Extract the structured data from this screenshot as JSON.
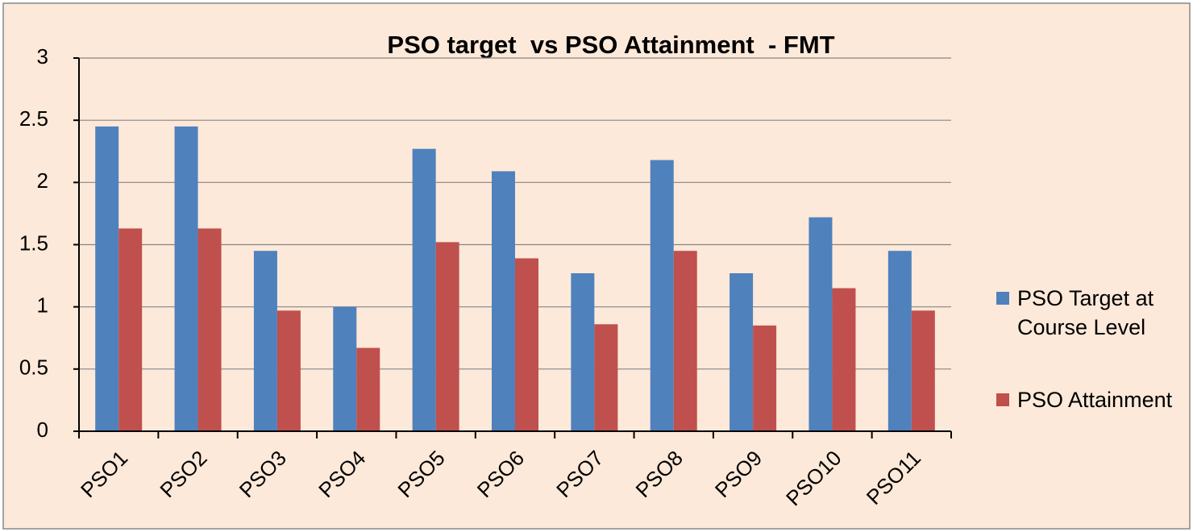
{
  "chart_data": {
    "type": "bar",
    "title": "PSO target  vs PSO Attainment  - FMT",
    "categories": [
      "PSO1",
      "PSO2",
      "PSO3",
      "PSO4",
      "PSO5",
      "PSO6",
      "PSO7",
      "PSO8",
      "PSO9",
      "PSO10",
      "PSO11"
    ],
    "series": [
      {
        "name": "PSO Target at Course Level",
        "color": "#4f81bd",
        "values": [
          2.45,
          2.45,
          1.45,
          1.0,
          2.27,
          2.09,
          1.27,
          2.18,
          1.27,
          1.72,
          1.45
        ]
      },
      {
        "name": "PSO Attainment",
        "color": "#c0504d",
        "values": [
          1.63,
          1.63,
          0.97,
          0.67,
          1.52,
          1.39,
          0.86,
          1.45,
          0.85,
          1.15,
          0.97
        ]
      }
    ],
    "ylim": [
      0,
      3
    ],
    "yticks": [
      0,
      0.5,
      1,
      1.5,
      2,
      2.5,
      3
    ],
    "grid": true,
    "legend": "right"
  }
}
